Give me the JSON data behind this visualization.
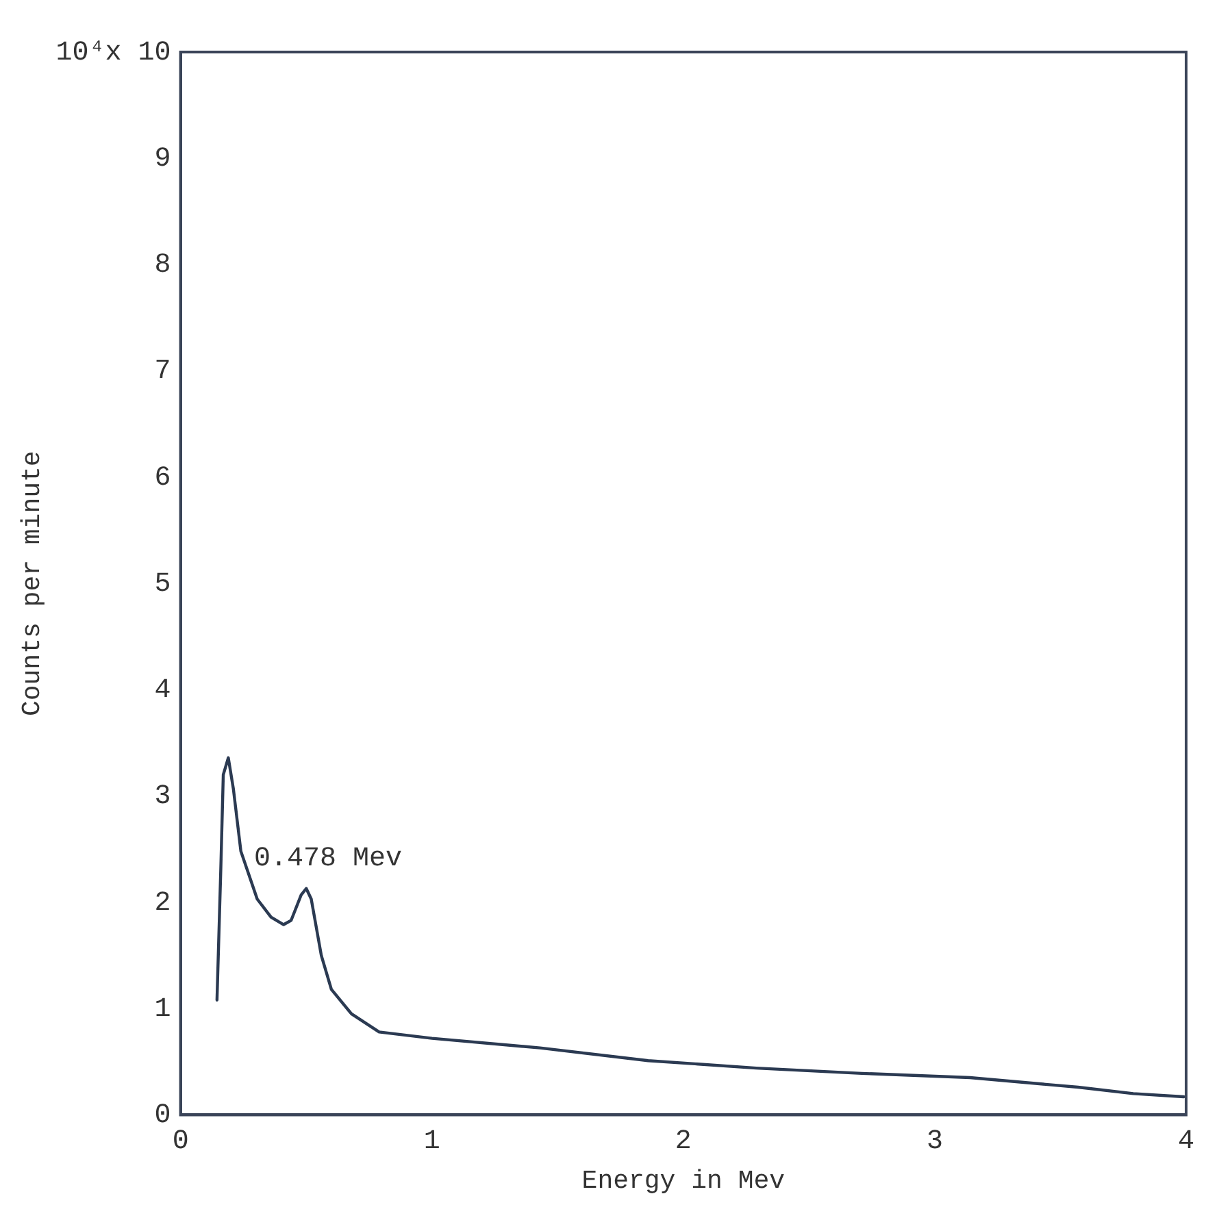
{
  "chart_data": {
    "type": "line",
    "xlabel": "Energy in Mev",
    "ylabel": "Counts per minute",
    "x": [
      0.145,
      0.16,
      0.17,
      0.19,
      0.21,
      0.24,
      0.305,
      0.36,
      0.41,
      0.44,
      0.48,
      0.5,
      0.52,
      0.56,
      0.6,
      0.68,
      0.79,
      1.0,
      1.43,
      1.86,
      2.29,
      2.71,
      3.14,
      3.57,
      3.79,
      3.99
    ],
    "series": [
      {
        "color": "#2b3a52",
        "values": [
          1.08,
          2.3,
          3.2,
          3.36,
          3.07,
          2.48,
          2.03,
          1.86,
          1.79,
          1.83,
          2.07,
          2.13,
          2.03,
          1.5,
          1.18,
          0.95,
          0.78,
          0.72,
          0.63,
          0.51,
          0.44,
          0.39,
          0.35,
          0.26,
          0.2,
          0.17
        ]
      }
    ],
    "xlim": [
      0,
      4
    ],
    "xticks": [
      0,
      1,
      2,
      3,
      4
    ],
    "ylim": [
      0,
      10
    ],
    "yticks": [
      0,
      1,
      2,
      3,
      4,
      5,
      6,
      7,
      8,
      9,
      {
        "value": 10,
        "label": "10⁴x 10"
      }
    ],
    "annotations": [
      {
        "text": "0.478 Mev",
        "x": 0.478,
        "y": 2.13
      }
    ],
    "grid": false,
    "legend": false,
    "marker": "none",
    "line_style": "solid"
  }
}
